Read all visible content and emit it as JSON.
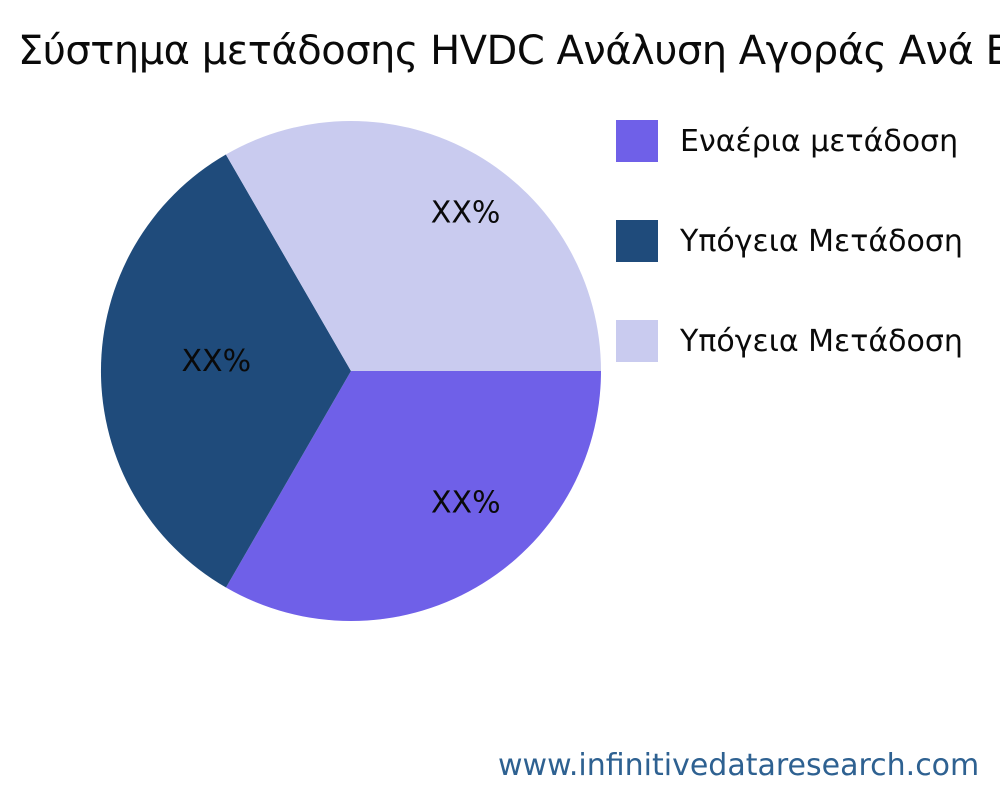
{
  "title": "Σύστημα μετάδοσης HVDC Ανάλυση Αγοράς Ανά Εφαρμογή",
  "footer": {
    "website": "www.infinitivedataresearch.com",
    "color": "#2E6191"
  },
  "chart_data": {
    "type": "pie",
    "title": "Σύστημα μετάδοσης HVDC Ανάλυση Αγοράς Ανά Εφαρμογή",
    "start_angle_deg": 0,
    "direction": "clockwise",
    "legend_position": "right",
    "slices": [
      {
        "label": "Εναέρια μετάδοση",
        "value": 33.33,
        "display_pct": "XX%",
        "color": "#6F60E8"
      },
      {
        "label": "Υπόγεια Μετάδοση",
        "value": 33.33,
        "display_pct": "XX%",
        "color": "#1F4B7B"
      },
      {
        "label": "Υπόγεια Μετάδοση",
        "value": 33.34,
        "display_pct": "XX%",
        "color": "#C9CBEF"
      }
    ]
  }
}
